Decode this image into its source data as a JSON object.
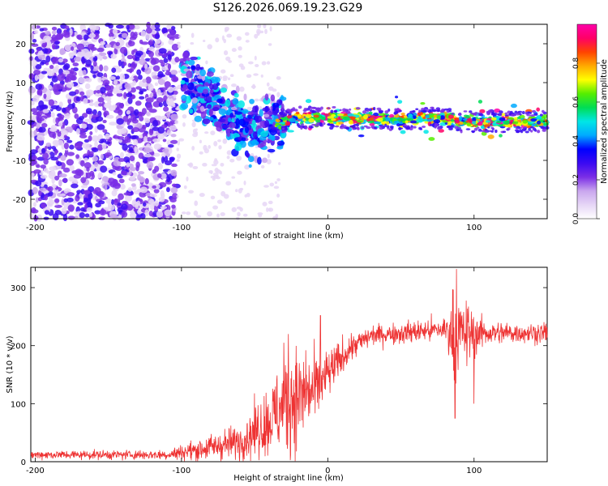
{
  "title": "S126.2026.069.19.23.G29",
  "chart_data": [
    {
      "type": "heatmap",
      "title": "S126.2026.069.19.23.G29",
      "xlabel": "Height of straight line (km)",
      "ylabel": "Frequency (Hz)",
      "xlim": [
        -203,
        150
      ],
      "ylim": [
        -25,
        25
      ],
      "x_ticks": [
        -200,
        -100,
        0,
        100
      ],
      "x_tick_labels": [
        "-200",
        "-100",
        "0",
        "100"
      ],
      "y_ticks": [
        -20,
        -10,
        0,
        10,
        20
      ],
      "y_tick_labels": [
        "-20",
        "-10",
        "0",
        "10",
        "20"
      ],
      "colorbar": {
        "label": "Normalized spectral amplitude",
        "range": [
          0.0,
          1.0
        ],
        "ticks": [
          0.0,
          0.2,
          0.4,
          0.6,
          0.8
        ],
        "tick_labels": [
          "0.0",
          "0.2",
          "0.4",
          "0.6",
          "0.8"
        ],
        "colors": [
          "#ffffff",
          "#e6d6f6",
          "#c9a6ee",
          "#7a2ee6",
          "#3b0af2",
          "#0000ff",
          "#00aaff",
          "#00e6e6",
          "#00dd55",
          "#55ee00",
          "#ffff00",
          "#ffaa00",
          "#ff4400",
          "#ff0066",
          "#ff00aa"
        ]
      },
      "ridge": [
        {
          "x": -100,
          "f": 12
        },
        {
          "x": -90,
          "f": 9
        },
        {
          "x": -80,
          "f": 6
        },
        {
          "x": -70,
          "f": 2
        },
        {
          "x": -60,
          "f": -1
        },
        {
          "x": -50,
          "f": -2
        },
        {
          "x": -40,
          "f": -1
        },
        {
          "x": -30,
          "f": 0
        },
        {
          "x": -20,
          "f": 1
        },
        {
          "x": 0,
          "f": 1
        },
        {
          "x": 50,
          "f": 0.5
        },
        {
          "x": 80,
          "f": 1
        },
        {
          "x": 90,
          "f": 0
        },
        {
          "x": 150,
          "f": 0
        }
      ]
    },
    {
      "type": "line",
      "xlabel": "Height of straight line (km)",
      "ylabel": "SNR (10 * v/v)",
      "xlim": [
        -203,
        150
      ],
      "ylim": [
        0,
        335
      ],
      "x_ticks": [
        -200,
        -100,
        0,
        100
      ],
      "x_tick_labels": [
        "-200",
        "-100",
        "0",
        "100"
      ],
      "y_ticks": [
        0,
        100,
        200,
        300
      ],
      "y_tick_labels": [
        "0",
        "100",
        "200",
        "300"
      ],
      "color": "#ee3333",
      "envelope": [
        {
          "x": -203,
          "base": 12,
          "noise": 6
        },
        {
          "x": -110,
          "base": 12,
          "noise": 7
        },
        {
          "x": -90,
          "base": 20,
          "noise": 15
        },
        {
          "x": -60,
          "base": 35,
          "noise": 25
        },
        {
          "x": -40,
          "base": 70,
          "noise": 50
        },
        {
          "x": -25,
          "base": 110,
          "noise": 80
        },
        {
          "x": -10,
          "base": 120,
          "noise": 50
        },
        {
          "x": 0,
          "base": 150,
          "noise": 35
        },
        {
          "x": 15,
          "base": 195,
          "noise": 20
        },
        {
          "x": 30,
          "base": 218,
          "noise": 14
        },
        {
          "x": 80,
          "base": 228,
          "noise": 18
        },
        {
          "x": 86,
          "base": 222,
          "noise": 60
        },
        {
          "x": 95,
          "base": 220,
          "noise": 45
        },
        {
          "x": 110,
          "base": 222,
          "noise": 16
        },
        {
          "x": 150,
          "base": 222,
          "noise": 14
        }
      ],
      "peaks": [
        {
          "x": -30,
          "y": 205
        },
        {
          "x": -27,
          "y": 220
        },
        {
          "x": -15,
          "y": 192
        },
        {
          "x": -5,
          "y": 252
        },
        {
          "x": 0,
          "y": 165
        },
        {
          "x": 88,
          "y": 332
        },
        {
          "x": 87,
          "y": 75
        },
        {
          "x": 100,
          "y": 100
        }
      ]
    }
  ]
}
